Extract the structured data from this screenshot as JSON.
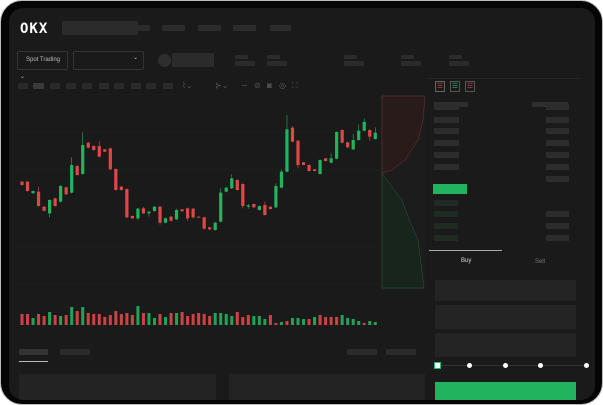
{
  "header": {
    "logo": "OKX"
  },
  "toolbar": {
    "market_type": "Spot Trading"
  },
  "orderbook": {
    "view_icons": [
      "orderbook-both-icon",
      "orderbook-bids-icon",
      "orderbook-asks-icon"
    ]
  },
  "trade": {
    "tabs": [
      {
        "label": "Buy",
        "active": true
      },
      {
        "label": "Sell",
        "active": false
      }
    ],
    "slider_percent": 0
  },
  "colors": {
    "up": "#22b35e",
    "down": "#e04848",
    "background": "#1a1a1a"
  },
  "chart_data": {
    "type": "candlestick",
    "candles": [
      [
        205,
        207,
        193,
        195
      ],
      [
        205,
        207,
        175,
        177
      ],
      [
        170,
        178,
        169,
        177
      ],
      [
        175,
        190,
        130,
        132
      ],
      [
        130,
        131,
        116,
        118
      ],
      [
        110,
        152,
        98,
        150
      ],
      [
        155,
        157,
        130,
        132
      ],
      [
        145,
        195,
        143,
        192
      ],
      [
        188,
        190,
        165,
        167
      ],
      [
        172,
        278,
        170,
        255
      ],
      [
        252,
        254,
        223,
        225
      ],
      [
        228,
        353,
        226,
        315
      ],
      [
        322,
        324,
        305,
        307
      ],
      [
        312,
        314,
        298,
        300
      ],
      [
        312,
        327,
        278,
        280
      ],
      [
        302,
        303,
        294,
        295
      ],
      [
        305,
        307,
        240,
        242
      ],
      [
        243,
        245,
        178,
        180
      ],
      [
        190,
        192,
        178,
        180
      ],
      [
        183,
        185,
        96,
        98
      ],
      [
        102,
        104,
        93,
        95
      ],
      [
        95,
        126,
        90,
        124
      ],
      [
        125,
        130,
        108,
        110
      ],
      [
        110,
        118,
        100,
        115
      ],
      [
        117,
        132,
        115,
        130
      ],
      [
        130,
        132,
        76,
        82
      ],
      [
        82,
        97,
        80,
        95
      ],
      [
        100,
        102,
        84,
        88
      ],
      [
        92,
        124,
        90,
        120
      ],
      [
        122,
        123,
        115,
        116
      ],
      [
        125,
        127,
        88,
        95
      ],
      [
        124,
        126,
        94,
        98
      ],
      [
        100,
        101,
        96,
        97
      ],
      [
        98,
        100,
        62,
        64
      ],
      [
        68,
        69,
        60,
        62
      ],
      [
        60,
        84,
        58,
        82
      ],
      [
        85,
        185,
        83,
        172
      ],
      [
        175,
        189,
        173,
        187
      ],
      [
        185,
        228,
        183,
        215
      ],
      [
        210,
        212,
        178,
        180
      ],
      [
        198,
        200,
        125,
        132
      ],
      [
        130,
        138,
        124,
        134
      ],
      [
        138,
        139,
        127,
        128
      ],
      [
        120,
        134,
        118,
        132
      ],
      [
        135,
        145,
        103,
        105
      ],
      [
        130,
        131,
        122,
        123
      ],
      [
        128,
        200,
        126,
        192
      ],
      [
        187,
        242,
        185,
        235
      ],
      [
        235,
        405,
        233,
        362
      ],
      [
        367,
        372,
        323,
        325
      ],
      [
        328,
        330,
        245,
        255
      ],
      [
        263,
        264,
        254,
        255
      ],
      [
        255,
        257,
        235,
        237
      ],
      [
        242,
        243,
        236,
        237
      ],
      [
        228,
        272,
        226,
        270
      ],
      [
        275,
        276,
        265,
        267
      ],
      [
        262,
        290,
        260,
        275
      ],
      [
        274,
        356,
        272,
        354
      ],
      [
        360,
        362,
        320,
        322
      ],
      [
        323,
        325,
        306,
        308
      ],
      [
        302,
        348,
        300,
        330
      ],
      [
        330,
        377,
        328,
        358
      ],
      [
        358,
        395,
        356,
        384
      ],
      [
        360,
        362,
        328,
        340
      ],
      [
        333,
        368,
        331,
        352
      ]
    ],
    "volume": [
      [
        11,
        "down"
      ],
      [
        11,
        "down"
      ],
      [
        7,
        "up"
      ],
      [
        11,
        "down"
      ],
      [
        9,
        "down"
      ],
      [
        13,
        "up"
      ],
      [
        10,
        "down"
      ],
      [
        9,
        "up"
      ],
      [
        10,
        "down"
      ],
      [
        18,
        "up"
      ],
      [
        14,
        "down"
      ],
      [
        18,
        "up"
      ],
      [
        12,
        "down"
      ],
      [
        11,
        "down"
      ],
      [
        11,
        "down"
      ],
      [
        8,
        "down"
      ],
      [
        10,
        "down"
      ],
      [
        14,
        "down"
      ],
      [
        11,
        "down"
      ],
      [
        12,
        "down"
      ],
      [
        10,
        "down"
      ],
      [
        19,
        "up"
      ],
      [
        12,
        "down"
      ],
      [
        12,
        "up"
      ],
      [
        7,
        "up"
      ],
      [
        11,
        "down"
      ],
      [
        8,
        "up"
      ],
      [
        12,
        "down"
      ],
      [
        12,
        "up"
      ],
      [
        13,
        "down"
      ],
      [
        9,
        "down"
      ],
      [
        11,
        "down"
      ],
      [
        12,
        "down"
      ],
      [
        11,
        "down"
      ],
      [
        9,
        "down"
      ],
      [
        12,
        "up"
      ],
      [
        12,
        "up"
      ],
      [
        11,
        "up"
      ],
      [
        9,
        "up"
      ],
      [
        13,
        "down"
      ],
      [
        8,
        "down"
      ],
      [
        10,
        "down"
      ],
      [
        9,
        "up"
      ],
      [
        9,
        "up"
      ],
      [
        6,
        "up"
      ],
      [
        10,
        "down"
      ],
      [
        2,
        "down"
      ],
      [
        3,
        "up"
      ],
      [
        4,
        "down"
      ],
      [
        7,
        "up"
      ],
      [
        7,
        "up"
      ],
      [
        6,
        "up"
      ],
      [
        6,
        "down"
      ],
      [
        8,
        "up"
      ],
      [
        10,
        "down"
      ],
      [
        8,
        "down"
      ],
      [
        8,
        "down"
      ],
      [
        8,
        "down"
      ],
      [
        10,
        "up"
      ],
      [
        7,
        "up"
      ],
      [
        6,
        "up"
      ],
      [
        4,
        "up"
      ],
      [
        2,
        "down"
      ],
      [
        4,
        "up"
      ],
      [
        3,
        "up"
      ]
    ]
  }
}
